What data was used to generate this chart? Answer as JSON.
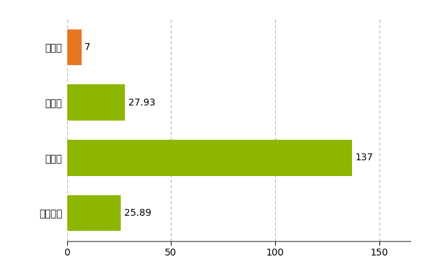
{
  "categories": [
    "小山町",
    "県平均",
    "県最大",
    "全国平均"
  ],
  "values": [
    7,
    27.93,
    137,
    25.89
  ],
  "bar_colors": [
    "#E87722",
    "#8DB600",
    "#8DB600",
    "#8DB600"
  ],
  "value_labels": [
    "7",
    "27.93",
    "137",
    "25.89"
  ],
  "xlim": [
    0,
    165
  ],
  "xticks": [
    0,
    50,
    100,
    150
  ],
  "background_color": "#ffffff",
  "grid_color": "#b0b0b0",
  "bar_height": 0.65,
  "label_fontsize": 10,
  "tick_fontsize": 10,
  "figsize": [
    6.5,
    4.0
  ],
  "dpi": 100
}
